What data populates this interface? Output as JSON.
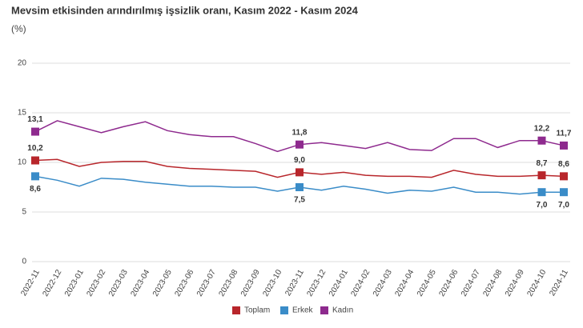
{
  "chart_data": {
    "type": "line",
    "title": "Mevsim etkisinden arındırılmış işsizlik oranı, Kasım 2022 - Kasım 2024",
    "subtitle": "(%)",
    "categories": [
      "2022-11",
      "2022-12",
      "2023-01",
      "2023-02",
      "2023-03",
      "2023-04",
      "2023-05",
      "2023-06",
      "2023-07",
      "2023-08",
      "2023-09",
      "2023-10",
      "2023-11",
      "2023-12",
      "2024-01",
      "2024-02",
      "2024-03",
      "2024-04",
      "2024-05",
      "2024-06",
      "2024-07",
      "2024-08",
      "2024-09",
      "2024-10",
      "2024-11"
    ],
    "series": [
      {
        "name": "Toplam",
        "color": "#b8262b",
        "values": [
          10.2,
          10.3,
          9.6,
          10.0,
          10.1,
          10.1,
          9.6,
          9.4,
          9.3,
          9.2,
          9.1,
          8.5,
          9.0,
          8.8,
          9.0,
          8.7,
          8.6,
          8.6,
          8.5,
          9.2,
          8.8,
          8.6,
          8.6,
          8.7,
          8.6
        ],
        "value_labels": [
          "10,2",
          null,
          null,
          null,
          null,
          null,
          null,
          null,
          null,
          null,
          null,
          null,
          "9,0",
          null,
          null,
          null,
          null,
          null,
          null,
          null,
          null,
          null,
          null,
          "8,7",
          "8,6"
        ]
      },
      {
        "name": "Erkek",
        "color": "#3a8cc8",
        "values": [
          8.6,
          8.2,
          7.6,
          8.4,
          8.3,
          8.0,
          7.8,
          7.6,
          7.6,
          7.5,
          7.5,
          7.1,
          7.5,
          7.2,
          7.6,
          7.3,
          6.9,
          7.2,
          7.1,
          7.5,
          7.0,
          7.0,
          6.8,
          7.0,
          7.0
        ],
        "value_labels": [
          "8,6",
          null,
          null,
          null,
          null,
          null,
          null,
          null,
          null,
          null,
          null,
          null,
          "7,5",
          null,
          null,
          null,
          null,
          null,
          null,
          null,
          null,
          null,
          null,
          "7,0",
          "7,0"
        ]
      },
      {
        "name": "Kadın",
        "color": "#8e2a8e",
        "values": [
          13.1,
          14.2,
          13.6,
          13.0,
          13.6,
          14.1,
          13.2,
          12.8,
          12.6,
          12.6,
          11.9,
          11.1,
          11.8,
          12.0,
          11.7,
          11.4,
          12.0,
          11.3,
          11.2,
          12.4,
          12.4,
          11.5,
          12.2,
          12.2,
          11.7
        ],
        "value_labels": [
          "13,1",
          null,
          null,
          null,
          null,
          null,
          null,
          null,
          null,
          null,
          null,
          null,
          "11,8",
          null,
          null,
          null,
          null,
          null,
          null,
          null,
          null,
          null,
          null,
          "12,2",
          "11,7"
        ]
      }
    ],
    "ylim": [
      0,
      20
    ],
    "yticks": [
      0,
      5,
      10,
      15,
      20
    ],
    "grid": true
  }
}
